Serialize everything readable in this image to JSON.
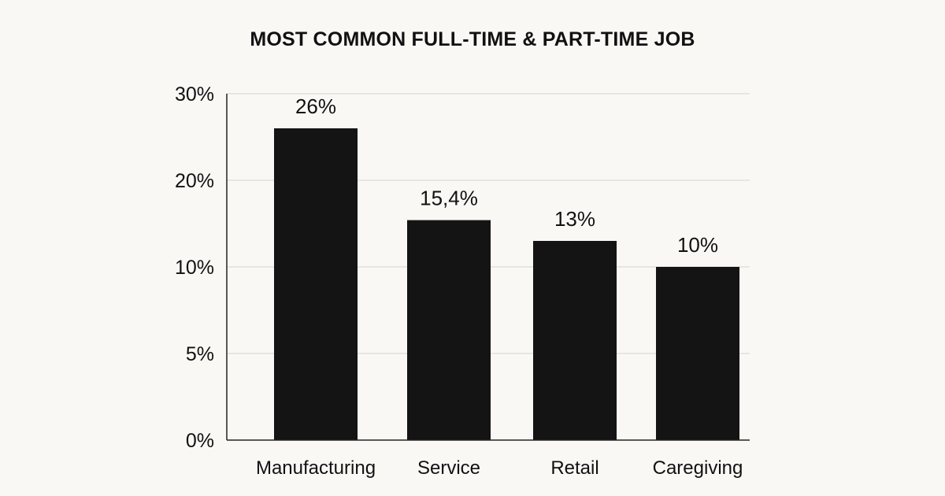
{
  "chart_data": {
    "type": "bar",
    "title": "MOST COMMON FULL-TIME & PART-TIME JOB",
    "xlabel": "",
    "ylabel": "",
    "y_ticks": [
      "0%",
      "5%",
      "10%",
      "20%",
      "30%"
    ],
    "ylim": [
      0,
      30
    ],
    "categories": [
      "Manufacturing",
      "Service",
      "Retail",
      "Caregiving"
    ],
    "values": [
      26,
      15.4,
      13,
      10
    ],
    "data_labels": [
      "26%",
      "15,4%",
      "13%",
      "10%"
    ],
    "bar_color": "#141414",
    "grid": true,
    "legend": "none"
  }
}
